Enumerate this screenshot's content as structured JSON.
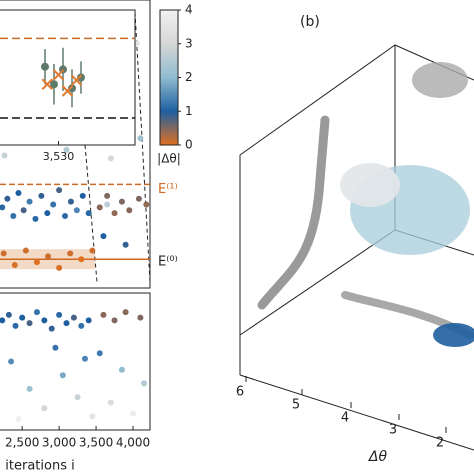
{
  "chart_data": [
    {
      "type": "scatter",
      "xlim": [
        2200,
        4230
      ],
      "ylim": [
        0,
        10
      ],
      "series": [
        {
          "x": [
            2230,
            2300,
            2380,
            2450,
            2520,
            2600,
            2680,
            2760,
            2840,
            2920,
            3000,
            3080,
            3160,
            3240,
            3320,
            3400,
            2260,
            2700,
            3100,
            3600,
            3700,
            3900,
            4100,
            3800,
            4050,
            3650,
            3550,
            3650,
            3750,
            3850,
            3950,
            4080,
            4180,
            2250,
            2400,
            2550,
            2700,
            2850,
            3000,
            3150,
            3300,
            3450,
            3600,
            3900
          ],
          "values": [
            2.8,
            3.1,
            2.5,
            3.3,
            2.7,
            3.0,
            2.4,
            3.2,
            2.6,
            2.9,
            3.4,
            2.5,
            3.0,
            2.7,
            3.2,
            2.6,
            4.6,
            5.5,
            4.8,
            6.5,
            4.5,
            7.8,
            5.2,
            9.2,
            8.5,
            2.9,
            2.8,
            3.2,
            2.6,
            3.0,
            2.7,
            3.1,
            2.9,
            1.2,
            0.8,
            1.3,
            0.9,
            1.1,
            0.7,
            1.2,
            1.0,
            1.3,
            1.8,
            1.5
          ],
          "c": [
            1.1,
            0.9,
            1.2,
            1.0,
            0.8,
            1.3,
            1.1,
            0.9,
            1.0,
            1.2,
            0.8,
            1.1,
            0.9,
            1.4,
            1.0,
            1.1,
            2.8,
            3.2,
            2.5,
            3.8,
            3.0,
            3.5,
            2.2,
            3.9,
            3.4,
            2.6,
            0.45,
            0.5,
            0.4,
            0.5,
            0.45,
            0.5,
            0.4,
            0.1,
            0.05,
            0.1,
            0.0,
            0.1,
            0.05,
            0.1,
            0.0,
            0.1,
            1.0,
            0.9
          ]
        }
      ],
      "hlines": [
        {
          "value": 3.6,
          "label": "E⁽¹⁾",
          "color": "#d06a20"
        },
        {
          "value": 1.0,
          "label": "E⁽⁰⁾",
          "color": "#d06a20"
        }
      ]
    },
    {
      "type": "errorbar",
      "xlim": [
        3517,
        3547
      ],
      "ylim": [
        0,
        10
      ],
      "xticks": [
        {
          "value": 3530,
          "label": "3,530"
        }
      ],
      "series": [
        {
          "x": [
            3527,
            3529,
            3531,
            3533,
            3535
          ],
          "values": [
            5.8,
            4.5,
            5.6,
            4.2,
            5.0
          ],
          "err": [
            1.3,
            1.5,
            1.6,
            1.4,
            1.2
          ],
          "color": "#5f7a6a"
        },
        {
          "x": [
            3527.5,
            3530,
            3532,
            3534
          ],
          "values": [
            4.5,
            5.2,
            4.0,
            4.8
          ],
          "color": "#e07a30"
        }
      ],
      "hlines": [
        {
          "value": 7.9,
          "color": "#d06a20"
        },
        {
          "value": 2.0,
          "color": "#111111"
        }
      ]
    },
    {
      "type": "scatter",
      "xlim": [
        2200,
        4230
      ],
      "ylim": [
        0,
        5
      ],
      "x_label": "iterations i",
      "xticks": [
        {
          "value": 2500,
          "label": "2,500"
        },
        {
          "value": 3000,
          "label": "3,000"
        },
        {
          "value": 3500,
          "label": "3,500"
        },
        {
          "value": 4000,
          "label": "4,000"
        }
      ],
      "series": [
        {
          "x": [
            2230,
            2320,
            2410,
            2500,
            2600,
            2700,
            2800,
            2900,
            3000,
            3100,
            3200,
            3300,
            3400,
            3600,
            3750,
            3900,
            4100,
            2350,
            2600,
            2800,
            3050,
            3250,
            3450,
            3550,
            3700,
            3850,
            4000,
            4150,
            2450,
            2950,
            3350
          ],
          "values": [
            4.0,
            4.2,
            3.8,
            4.1,
            3.9,
            4.3,
            4.0,
            3.7,
            4.2,
            3.9,
            4.1,
            3.8,
            4.0,
            4.2,
            4.0,
            4.3,
            4.1,
            2.5,
            1.5,
            0.8,
            2.0,
            1.2,
            0.5,
            2.8,
            1.0,
            2.2,
            0.6,
            1.7,
            0.4,
            3.0,
            2.6
          ],
          "c": [
            1.0,
            0.9,
            1.1,
            1.0,
            0.8,
            1.2,
            1.0,
            0.9,
            1.1,
            1.0,
            0.8,
            1.2,
            1.0,
            0.45,
            0.5,
            0.45,
            0.5,
            1.5,
            2.2,
            3.0,
            1.8,
            2.8,
            3.5,
            1.3,
            3.2,
            2.0,
            3.8,
            2.5,
            3.9,
            1.2,
            1.4
          ]
        }
      ]
    },
    {
      "type": "colorbar",
      "label": "|Δθ|",
      "ylim": [
        0,
        4
      ],
      "yticks": [
        0,
        1,
        2,
        3,
        4
      ],
      "colors": [
        "#e07020",
        "#1f5fa0",
        "#8fbcd0",
        "#d6d6d6",
        "#f2f2f2"
      ]
    },
    {
      "type": "scatter3d",
      "title": "(b)",
      "x_label": "Δθ",
      "xticks": [
        6,
        5,
        4,
        3,
        2
      ]
    }
  ]
}
